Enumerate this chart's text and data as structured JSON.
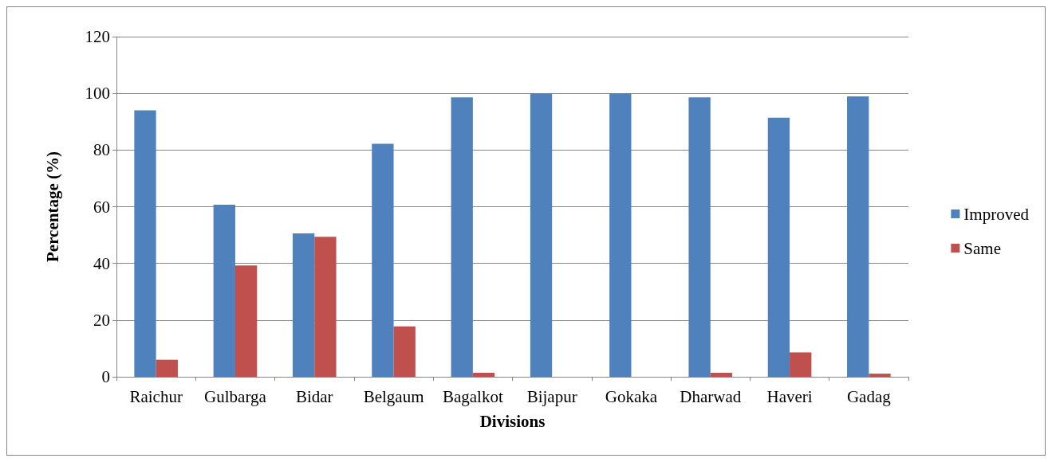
{
  "chart_data": {
    "type": "bar",
    "xlabel": "Divisions",
    "ylabel": "Percentage (%)",
    "categories": [
      "Raichur",
      "Gulbarga",
      "Bidar",
      "Belgaum",
      "Bagalkot",
      "Bijapur",
      "Gokaka",
      "Dharwad",
      "Haveri",
      "Gadag"
    ],
    "series": [
      {
        "name": "Improved",
        "color": "#4f81bd",
        "values": [
          94,
          60.7,
          50.6,
          82.2,
          98.6,
          100,
          100,
          98.6,
          91.4,
          98.9
        ]
      },
      {
        "name": "Same",
        "color": "#c0504d",
        "values": [
          6,
          39.3,
          49.4,
          17.8,
          1.4,
          0,
          0,
          1.4,
          8.6,
          1.1
        ]
      }
    ],
    "ylim": [
      0,
      120
    ],
    "yticks": [
      0,
      20,
      40,
      60,
      80,
      100,
      120
    ],
    "grid": "y",
    "legend": "right"
  }
}
